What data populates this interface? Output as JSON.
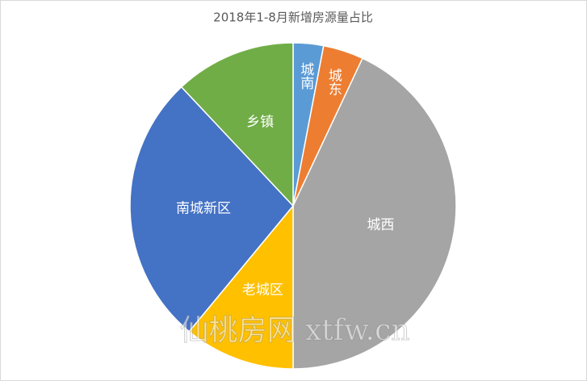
{
  "chart_data": {
    "type": "pie",
    "title": "2018年1-8月新增房源量占比",
    "categories": [
      "城南",
      "城东",
      "城西",
      "老城区",
      "南城新区",
      "乡镇"
    ],
    "values": [
      3,
      4,
      43,
      11,
      27,
      12
    ],
    "colors": [
      "#5b9bd5",
      "#ed7d31",
      "#a5a5a5",
      "#ffc000",
      "#4472c4",
      "#70ad47"
    ],
    "watermark": "仙桃房网 xtfw.cn"
  }
}
